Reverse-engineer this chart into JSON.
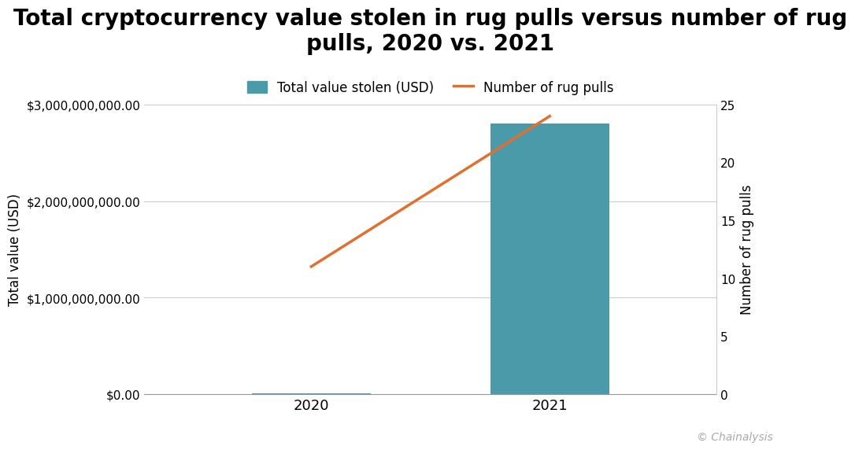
{
  "categories": [
    "2020",
    "2021"
  ],
  "bar_values": [
    8900000,
    2800000000
  ],
  "line_values": [
    11,
    24
  ],
  "bar_color": "#4a9aaa",
  "line_color": "#e07030",
  "title": "Total cryptocurrency value stolen in rug pulls versus number of rug\npulls, 2020 vs. 2021",
  "ylabel_left": "Total value (USD)",
  "ylabel_right": "Number of rug pulls",
  "ylim_left": [
    0,
    3000000000
  ],
  "ylim_right": [
    0,
    25
  ],
  "yticks_left": [
    0,
    1000000000,
    2000000000,
    3000000000
  ],
  "yticks_right": [
    0,
    5,
    10,
    15,
    20,
    25
  ],
  "background_color": "#ffffff",
  "grid_color": "#cccccc",
  "legend_bar_label": "Total value stolen (USD)",
  "legend_line_label": "Number of rug pulls",
  "watermark": "© Chainalysis",
  "title_fontsize": 20,
  "axis_label_fontsize": 12,
  "tick_fontsize": 11,
  "legend_fontsize": 12
}
